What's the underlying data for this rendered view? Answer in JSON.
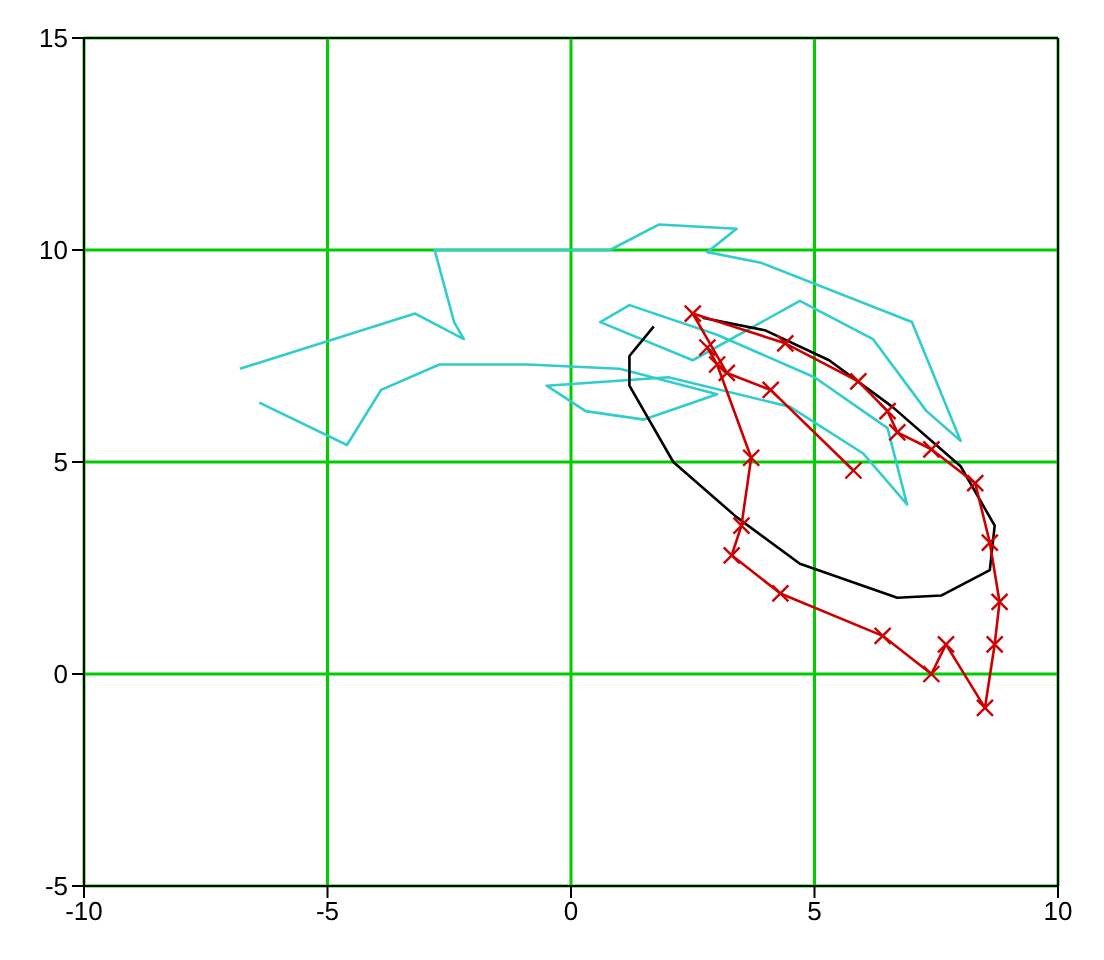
{
  "chart_data": {
    "type": "line",
    "xlim": [
      -10,
      10
    ],
    "ylim": [
      -5,
      15
    ],
    "xticks": [
      -10,
      -5,
      0,
      5,
      10
    ],
    "yticks": [
      -5,
      0,
      5,
      10,
      15
    ],
    "grid": true,
    "legend": false,
    "series": [
      {
        "color": "#33cccc",
        "marker": "none",
        "x": [
          -6.4,
          -4.6,
          -3.9,
          -2.7,
          -0.9,
          1.0,
          3.0,
          1.5,
          0.3,
          -0.5,
          2.0,
          4.5,
          6.0,
          6.9,
          6.5,
          5.0,
          3.0,
          1.2,
          0.6,
          2.5,
          4.7,
          6.2,
          7.3,
          8.0,
          7.0,
          3.9,
          2.8,
          3.4,
          1.8,
          0.8,
          -2.8,
          -2.4,
          -2.2,
          -3.2,
          -6.8
        ],
        "values": [
          6.4,
          5.4,
          6.7,
          7.3,
          7.3,
          7.2,
          6.6,
          6.0,
          6.2,
          6.8,
          7.0,
          6.3,
          5.2,
          4.0,
          5.8,
          7.0,
          8.0,
          8.7,
          8.3,
          7.4,
          8.8,
          7.9,
          6.2,
          5.5,
          8.3,
          9.7,
          9.95,
          10.5,
          10.6,
          10.0,
          10.0,
          8.3,
          7.9,
          8.5,
          7.2
        ]
      },
      {
        "color": "#000000",
        "marker": "none",
        "x": [
          1.7,
          1.2,
          1.2,
          2.1,
          3.4,
          4.7,
          6.7,
          7.6,
          8.6,
          8.7,
          8.0,
          6.6,
          5.3,
          4.0,
          2.7
        ],
        "values": [
          8.2,
          7.5,
          6.8,
          5.0,
          3.7,
          2.6,
          1.8,
          1.85,
          2.45,
          3.5,
          4.9,
          6.3,
          7.4,
          8.1,
          8.4
        ]
      },
      {
        "color": "#cc0000",
        "marker": "cross",
        "x": [
          5.8,
          4.1,
          3.2,
          2.5,
          4.4,
          5.9,
          6.5,
          6.7,
          7.4,
          8.3,
          8.6,
          8.8,
          8.7,
          8.5,
          7.7,
          7.4,
          6.4,
          4.3,
          3.3,
          3.5,
          3.7,
          3.0,
          2.8
        ],
        "values": [
          4.8,
          6.7,
          7.1,
          8.5,
          7.8,
          6.9,
          6.2,
          5.7,
          5.3,
          4.5,
          3.1,
          1.7,
          0.7,
          -0.8,
          0.7,
          0.0,
          0.9,
          1.9,
          2.8,
          3.5,
          5.1,
          7.3,
          7.7
        ]
      }
    ]
  }
}
